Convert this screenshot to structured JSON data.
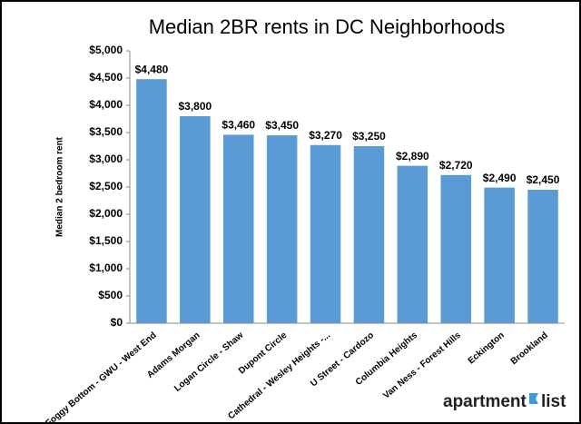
{
  "chart_data": {
    "type": "bar",
    "title": "Median 2BR rents in DC Neighborhoods",
    "y_label": "Median 2 bedroom rent",
    "categories": [
      "Foggy Bottom - GWU - West End",
      "Adams Morgan",
      "Logan Circle - Shaw",
      "Dupont Circle",
      "Cathedral - Wesley Heights -...",
      "U Street - Cardozo",
      "Columbia Heights",
      "Van Ness - Forest Hills",
      "Eckington",
      "Brookland"
    ],
    "values": [
      4480,
      3800,
      3460,
      3450,
      3270,
      3250,
      2890,
      2720,
      2490,
      2450
    ],
    "value_labels": [
      "$4,480",
      "$3,800",
      "$3,460",
      "$3,450",
      "$3,270",
      "$3,250",
      "$2,890",
      "$2,720",
      "$2,490",
      "$2,450"
    ],
    "color": "#5b9bd5",
    "ylim": [
      0,
      5000
    ],
    "yticks": [
      {
        "value": 0,
        "label": "$0"
      },
      {
        "value": 500,
        "label": "$500"
      },
      {
        "value": 1000,
        "label": "$1,000"
      },
      {
        "value": 1500,
        "label": "$1,500"
      },
      {
        "value": 2000,
        "label": "$2,000"
      },
      {
        "value": 2500,
        "label": "$2,500"
      },
      {
        "value": 3000,
        "label": "$3,000"
      },
      {
        "value": 3500,
        "label": "$3,500"
      },
      {
        "value": 4000,
        "label": "$4,000"
      },
      {
        "value": 4500,
        "label": "$4,500"
      },
      {
        "value": 5000,
        "label": "$5,000"
      }
    ],
    "grid": false,
    "brand": [
      "apartment",
      "list"
    ]
  }
}
